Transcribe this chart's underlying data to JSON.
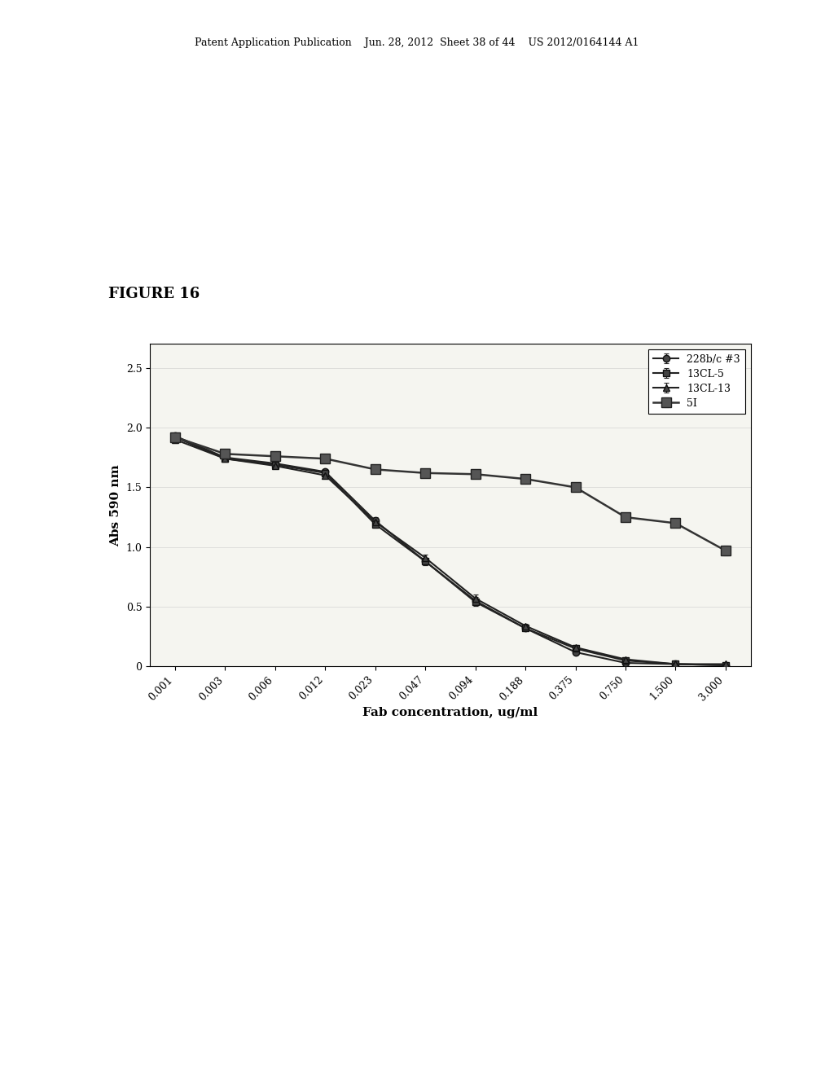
{
  "title": "FIGURE 16",
  "xlabel": "Fab concentration, ug/ml",
  "ylabel": "Abs 590 nm",
  "x_labels": [
    "0.001",
    "0.003",
    "0.006",
    "0.012",
    "0.023",
    "0.047",
    "0.094",
    "0.188",
    "0.375",
    "0.750",
    "1.500",
    "3.000"
  ],
  "x_values": [
    0.001,
    0.003,
    0.006,
    0.012,
    0.023,
    0.047,
    0.094,
    0.188,
    0.375,
    0.75,
    1.5,
    3.0
  ],
  "ylim": [
    0,
    2.7
  ],
  "yticks": [
    0,
    0.5,
    1.0,
    1.5,
    2.0,
    2.5
  ],
  "series": [
    {
      "label": "228b/c #3",
      "marker": "o",
      "marker_size": 6,
      "color": "#222222",
      "linewidth": 1.5,
      "y": [
        1.93,
        1.75,
        1.7,
        1.63,
        1.22,
        0.88,
        0.55,
        0.32,
        0.12,
        0.03,
        0.02,
        0.01
      ],
      "yerr": [
        0.03,
        0.02,
        0.02,
        0.02,
        0.03,
        0.03,
        0.03,
        0.02,
        0.02,
        0.01,
        0.01,
        0.01
      ]
    },
    {
      "label": "13CL-5",
      "marker": "s",
      "marker_size": 6,
      "color": "#222222",
      "linewidth": 1.5,
      "y": [
        1.92,
        1.74,
        1.69,
        1.62,
        1.19,
        0.88,
        0.54,
        0.32,
        0.15,
        0.05,
        0.02,
        0.01
      ],
      "yerr": [
        0.03,
        0.02,
        0.02,
        0.02,
        0.03,
        0.03,
        0.03,
        0.02,
        0.02,
        0.01,
        0.01,
        0.01
      ]
    },
    {
      "label": "13CL-13",
      "marker": "^",
      "marker_size": 6,
      "color": "#222222",
      "linewidth": 1.5,
      "y": [
        1.9,
        1.74,
        1.68,
        1.6,
        1.21,
        0.91,
        0.57,
        0.34,
        0.16,
        0.06,
        0.02,
        0.02
      ],
      "yerr": [
        0.03,
        0.02,
        0.02,
        0.02,
        0.03,
        0.03,
        0.03,
        0.02,
        0.02,
        0.01,
        0.01,
        0.01
      ]
    },
    {
      "label": "5I",
      "marker": "s",
      "marker_size": 9,
      "color": "#333333",
      "linewidth": 1.8,
      "y": [
        1.92,
        1.78,
        1.76,
        1.74,
        1.65,
        1.62,
        1.61,
        1.57,
        1.5,
        1.25,
        1.2,
        0.97
      ],
      "yerr": [
        0.03,
        0.02,
        0.02,
        0.03,
        0.03,
        0.03,
        0.03,
        0.03,
        0.03,
        0.03,
        0.03,
        0.04
      ]
    }
  ],
  "background_color": "#f5f5f0",
  "figure_background": "#ffffff",
  "header_text": "Patent Application Publication    Jun. 28, 2012  Sheet 38 of 44    US 2012/0164144 A1",
  "figure_label": "FIGURE 16"
}
